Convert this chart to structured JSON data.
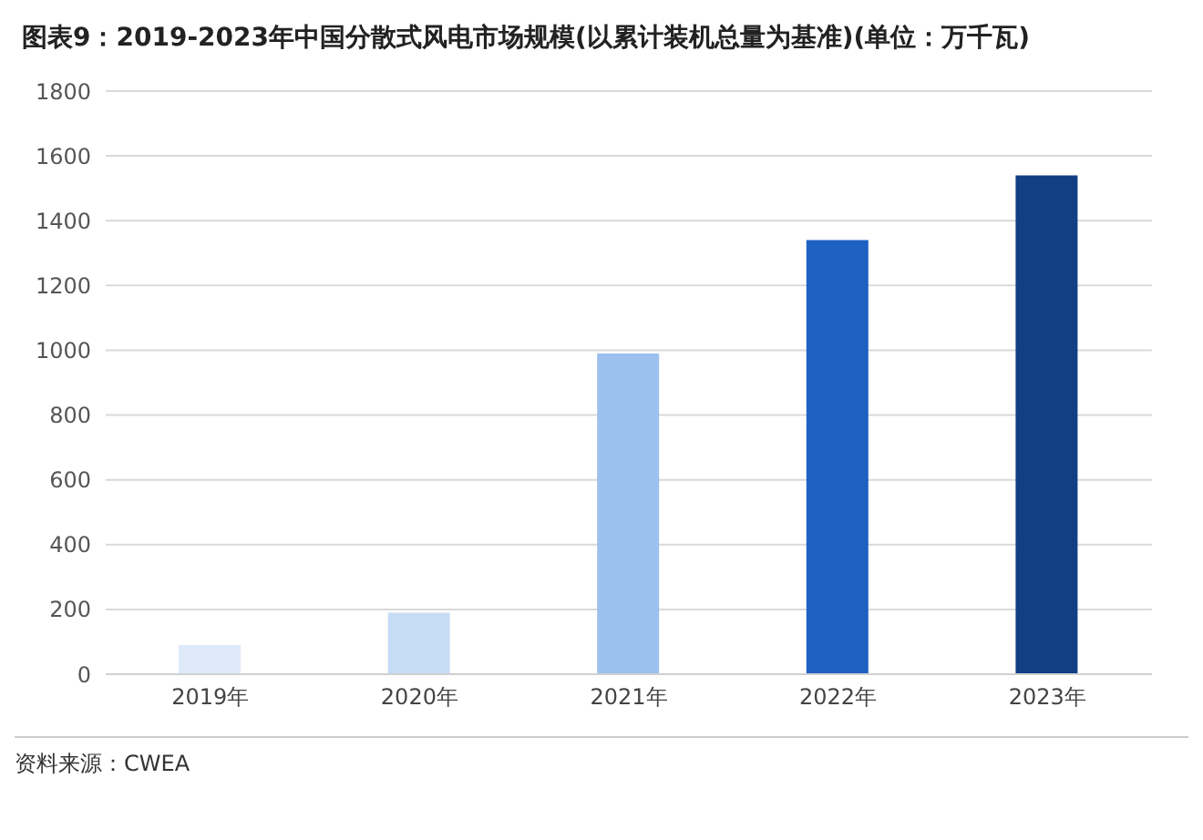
{
  "chart_data": {
    "type": "bar",
    "title": "图表9：2019-2023年中国分散式风电市场规模(以累计装机总量为基准)(单位：万千瓦)",
    "categories": [
      "2019年",
      "2020年",
      "2021年",
      "2022年",
      "2023年"
    ],
    "values": [
      90,
      190,
      990,
      1340,
      1540
    ],
    "colors": [
      "#dde9f8",
      "#c5dbf6",
      "#9dc1ef",
      "#1f61c2",
      "#123f84"
    ],
    "ylim": [
      0,
      1800
    ],
    "yticks": [
      0,
      200,
      400,
      600,
      800,
      1000,
      1200,
      1400,
      1600,
      1800
    ],
    "grid": "y",
    "annotations": [
      "资料来源：CWEA"
    ]
  }
}
